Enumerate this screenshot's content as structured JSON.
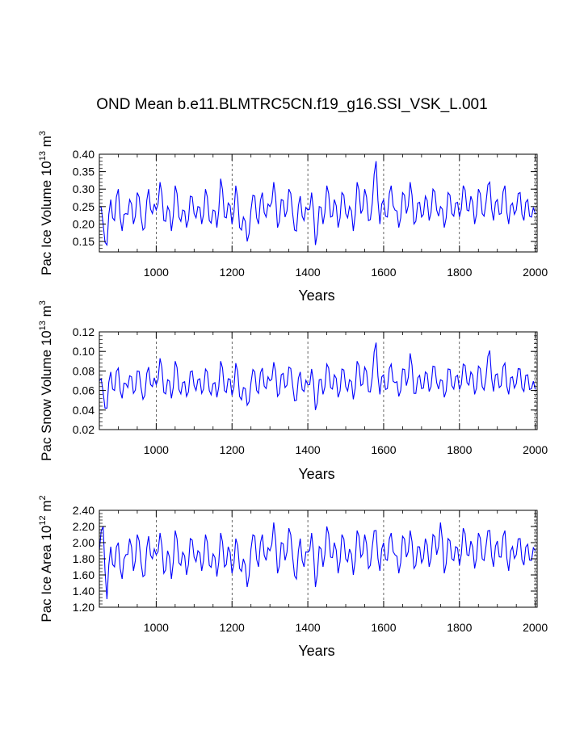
{
  "title": "OND Mean b.e11.BLMTRC5CN.f19_g16.SSI_VSK_L.001",
  "colors": {
    "series": "#0000ff",
    "axis": "#000000"
  },
  "chart_data": [
    {
      "type": "line",
      "ylabel": {
        "text": "Pac Ice Volume 10",
        "exp": "13",
        "unit": "m",
        "unit_exp": "3"
      },
      "xlabel": "Years",
      "xlim": [
        850,
        2005
      ],
      "ylim": [
        0.12,
        0.4
      ],
      "xticks": [
        1000,
        1200,
        1400,
        1600,
        1800,
        2000
      ],
      "yticks": [
        "0.15",
        "0.20",
        "0.25",
        "0.30",
        "0.35",
        "0.40"
      ],
      "grid": "vertical-dashed",
      "series": [
        {
          "x": [
            850,
            860,
            870,
            880,
            890,
            900,
            910,
            920,
            930,
            940,
            950,
            960,
            970,
            980,
            990,
            1000,
            1010,
            1020,
            1030,
            1040,
            1050,
            1060,
            1070,
            1080,
            1090,
            1100,
            1110,
            1120,
            1130,
            1140,
            1150,
            1160,
            1170,
            1180,
            1190,
            1200,
            1210,
            1220,
            1230,
            1240,
            1250,
            1260,
            1270,
            1280,
            1290,
            1300,
            1310,
            1320,
            1330,
            1340,
            1350,
            1360,
            1370,
            1380,
            1390,
            1400,
            1410,
            1420,
            1430,
            1440,
            1450,
            1460,
            1470,
            1480,
            1490,
            1500,
            1510,
            1520,
            1530,
            1540,
            1550,
            1560,
            1570,
            1580,
            1590,
            1600,
            1610,
            1620,
            1630,
            1640,
            1650,
            1660,
            1670,
            1680,
            1690,
            1700,
            1710,
            1720,
            1730,
            1740,
            1750,
            1760,
            1770,
            1780,
            1790,
            1800,
            1810,
            1820,
            1830,
            1840,
            1850,
            1860,
            1870,
            1880,
            1890,
            1900,
            1910,
            1920,
            1930,
            1940,
            1950,
            1960,
            1970,
            1980,
            1990,
            2000
          ],
          "values": [
            0.25,
            0.2,
            0.14,
            0.27,
            0.21,
            0.3,
            0.18,
            0.23,
            0.27,
            0.2,
            0.29,
            0.22,
            0.19,
            0.3,
            0.23,
            0.24,
            0.32,
            0.21,
            0.25,
            0.18,
            0.31,
            0.22,
            0.24,
            0.19,
            0.28,
            0.23,
            0.25,
            0.2,
            0.3,
            0.21,
            0.24,
            0.19,
            0.33,
            0.22,
            0.26,
            0.2,
            0.31,
            0.19,
            0.22,
            0.15,
            0.24,
            0.28,
            0.2,
            0.29,
            0.22,
            0.25,
            0.32,
            0.19,
            0.27,
            0.22,
            0.3,
            0.23,
            0.18,
            0.28,
            0.21,
            0.24,
            0.29,
            0.14,
            0.25,
            0.2,
            0.31,
            0.22,
            0.27,
            0.19,
            0.29,
            0.23,
            0.25,
            0.18,
            0.32,
            0.23,
            0.3,
            0.21,
            0.26,
            0.38,
            0.2,
            0.27,
            0.22,
            0.31,
            0.24,
            0.19,
            0.29,
            0.23,
            0.32,
            0.2,
            0.26,
            0.22,
            0.28,
            0.21,
            0.3,
            0.24,
            0.25,
            0.19,
            0.29,
            0.23,
            0.26,
            0.22,
            0.31,
            0.24,
            0.28,
            0.2,
            0.3,
            0.23,
            0.26,
            0.32,
            0.21,
            0.27,
            0.23,
            0.31,
            0.2,
            0.26,
            0.24,
            0.29,
            0.21,
            0.27,
            0.22,
            0.23
          ]
        }
      ]
    },
    {
      "type": "line",
      "ylabel": {
        "text": "Pac Snow Volume 10",
        "exp": "13",
        "unit": "m",
        "unit_exp": "3"
      },
      "xlabel": "Years",
      "xlim": [
        850,
        2005
      ],
      "ylim": [
        0.02,
        0.12
      ],
      "xticks": [
        1000,
        1200,
        1400,
        1600,
        1800,
        2000
      ],
      "yticks": [
        "0.02",
        "0.04",
        "0.06",
        "0.08",
        "0.10",
        "0.12"
      ],
      "grid": "vertical-dashed",
      "series": [
        {
          "x": [
            850,
            860,
            870,
            880,
            890,
            900,
            910,
            920,
            930,
            940,
            950,
            960,
            970,
            980,
            990,
            1000,
            1010,
            1020,
            1030,
            1040,
            1050,
            1060,
            1070,
            1080,
            1090,
            1100,
            1110,
            1120,
            1130,
            1140,
            1150,
            1160,
            1170,
            1180,
            1190,
            1200,
            1210,
            1220,
            1230,
            1240,
            1250,
            1260,
            1270,
            1280,
            1290,
            1300,
            1310,
            1320,
            1330,
            1340,
            1350,
            1360,
            1370,
            1380,
            1390,
            1400,
            1410,
            1420,
            1430,
            1440,
            1450,
            1460,
            1470,
            1480,
            1490,
            1500,
            1510,
            1520,
            1530,
            1540,
            1550,
            1560,
            1570,
            1580,
            1590,
            1600,
            1610,
            1620,
            1630,
            1640,
            1650,
            1660,
            1670,
            1680,
            1690,
            1700,
            1710,
            1720,
            1730,
            1740,
            1750,
            1760,
            1770,
            1780,
            1790,
            1800,
            1810,
            1820,
            1830,
            1840,
            1850,
            1860,
            1870,
            1880,
            1890,
            1900,
            1910,
            1920,
            1930,
            1940,
            1950,
            1960,
            1970,
            1980,
            1990,
            2000
          ],
          "values": [
            0.07,
            0.058,
            0.042,
            0.079,
            0.06,
            0.083,
            0.052,
            0.067,
            0.075,
            0.057,
            0.08,
            0.063,
            0.055,
            0.084,
            0.064,
            0.066,
            0.093,
            0.058,
            0.071,
            0.052,
            0.09,
            0.061,
            0.068,
            0.054,
            0.079,
            0.065,
            0.071,
            0.057,
            0.082,
            0.06,
            0.067,
            0.053,
            0.09,
            0.06,
            0.072,
            0.055,
            0.088,
            0.054,
            0.063,
            0.045,
            0.068,
            0.079,
            0.057,
            0.083,
            0.062,
            0.07,
            0.089,
            0.054,
            0.076,
            0.063,
            0.084,
            0.065,
            0.05,
            0.079,
            0.059,
            0.066,
            0.082,
            0.04,
            0.071,
            0.056,
            0.087,
            0.063,
            0.076,
            0.053,
            0.082,
            0.064,
            0.071,
            0.051,
            0.09,
            0.065,
            0.084,
            0.059,
            0.074,
            0.109,
            0.056,
            0.076,
            0.062,
            0.087,
            0.068,
            0.054,
            0.082,
            0.065,
            0.098,
            0.057,
            0.073,
            0.062,
            0.079,
            0.059,
            0.085,
            0.068,
            0.071,
            0.053,
            0.082,
            0.065,
            0.074,
            0.061,
            0.087,
            0.068,
            0.079,
            0.056,
            0.085,
            0.064,
            0.073,
            0.101,
            0.059,
            0.077,
            0.065,
            0.088,
            0.056,
            0.074,
            0.067,
            0.082,
            0.059,
            0.076,
            0.062,
            0.061
          ]
        }
      ]
    },
    {
      "type": "line",
      "ylabel": {
        "text": "Pac Ice Area 10",
        "exp": "12",
        "unit": "m",
        "unit_exp": "2"
      },
      "xlabel": "Years",
      "xlim": [
        850,
        2005
      ],
      "ylim": [
        1.2,
        2.4
      ],
      "xticks": [
        1000,
        1200,
        1400,
        1600,
        1800,
        2000
      ],
      "yticks": [
        "1.20",
        "1.40",
        "1.60",
        "1.80",
        "2.00",
        "2.20",
        "2.40"
      ],
      "grid": "vertical-dashed",
      "series": [
        {
          "x": [
            850,
            860,
            870,
            880,
            890,
            900,
            910,
            920,
            930,
            940,
            950,
            960,
            970,
            980,
            990,
            1000,
            1010,
            1020,
            1030,
            1040,
            1050,
            1060,
            1070,
            1080,
            1090,
            1100,
            1110,
            1120,
            1130,
            1140,
            1150,
            1160,
            1170,
            1180,
            1190,
            1200,
            1210,
            1220,
            1230,
            1240,
            1250,
            1260,
            1270,
            1280,
            1290,
            1300,
            1310,
            1320,
            1330,
            1340,
            1350,
            1360,
            1370,
            1380,
            1390,
            1400,
            1410,
            1420,
            1430,
            1440,
            1450,
            1460,
            1470,
            1480,
            1490,
            1500,
            1510,
            1520,
            1530,
            1540,
            1550,
            1560,
            1570,
            1580,
            1590,
            1600,
            1610,
            1620,
            1630,
            1640,
            1650,
            1660,
            1670,
            1680,
            1690,
            1700,
            1710,
            1720,
            1730,
            1740,
            1750,
            1760,
            1770,
            1780,
            1790,
            1800,
            1810,
            1820,
            1830,
            1840,
            1850,
            1860,
            1870,
            1880,
            1890,
            1900,
            1910,
            1920,
            1930,
            1940,
            1950,
            1960,
            1970,
            1980,
            1990,
            2000
          ],
          "values": [
            1.9,
            2.2,
            1.3,
            1.95,
            1.7,
            2.0,
            1.55,
            1.85,
            2.05,
            1.65,
            2.1,
            1.75,
            1.6,
            2.08,
            1.8,
            1.85,
            2.12,
            1.62,
            1.9,
            1.55,
            2.15,
            1.75,
            1.88,
            1.6,
            2.05,
            1.82,
            1.9,
            1.65,
            2.1,
            1.72,
            1.86,
            1.58,
            2.12,
            1.7,
            1.95,
            1.62,
            2.05,
            1.68,
            1.8,
            1.45,
            1.92,
            2.08,
            1.7,
            2.1,
            1.78,
            1.9,
            2.25,
            1.62,
            2.0,
            1.78,
            2.18,
            1.82,
            1.55,
            2.05,
            1.7,
            1.88,
            2.12,
            1.45,
            1.95,
            1.7,
            2.2,
            1.82,
            2.0,
            1.62,
            2.1,
            1.8,
            1.92,
            1.6,
            2.15,
            1.82,
            2.1,
            1.68,
            1.95,
            2.15,
            1.65,
            2.0,
            1.78,
            2.12,
            1.85,
            1.62,
            2.08,
            1.82,
            2.15,
            1.68,
            1.95,
            1.75,
            2.05,
            1.7,
            2.1,
            1.85,
            2.25,
            1.62,
            2.05,
            1.8,
            1.95,
            1.72,
            2.18,
            1.85,
            2.02,
            1.68,
            2.12,
            1.8,
            1.95,
            2.15,
            1.7,
            2.02,
            1.82,
            2.15,
            1.65,
            1.95,
            1.85,
            2.05,
            1.72,
            1.98,
            1.78,
            1.9
          ]
        }
      ]
    }
  ]
}
